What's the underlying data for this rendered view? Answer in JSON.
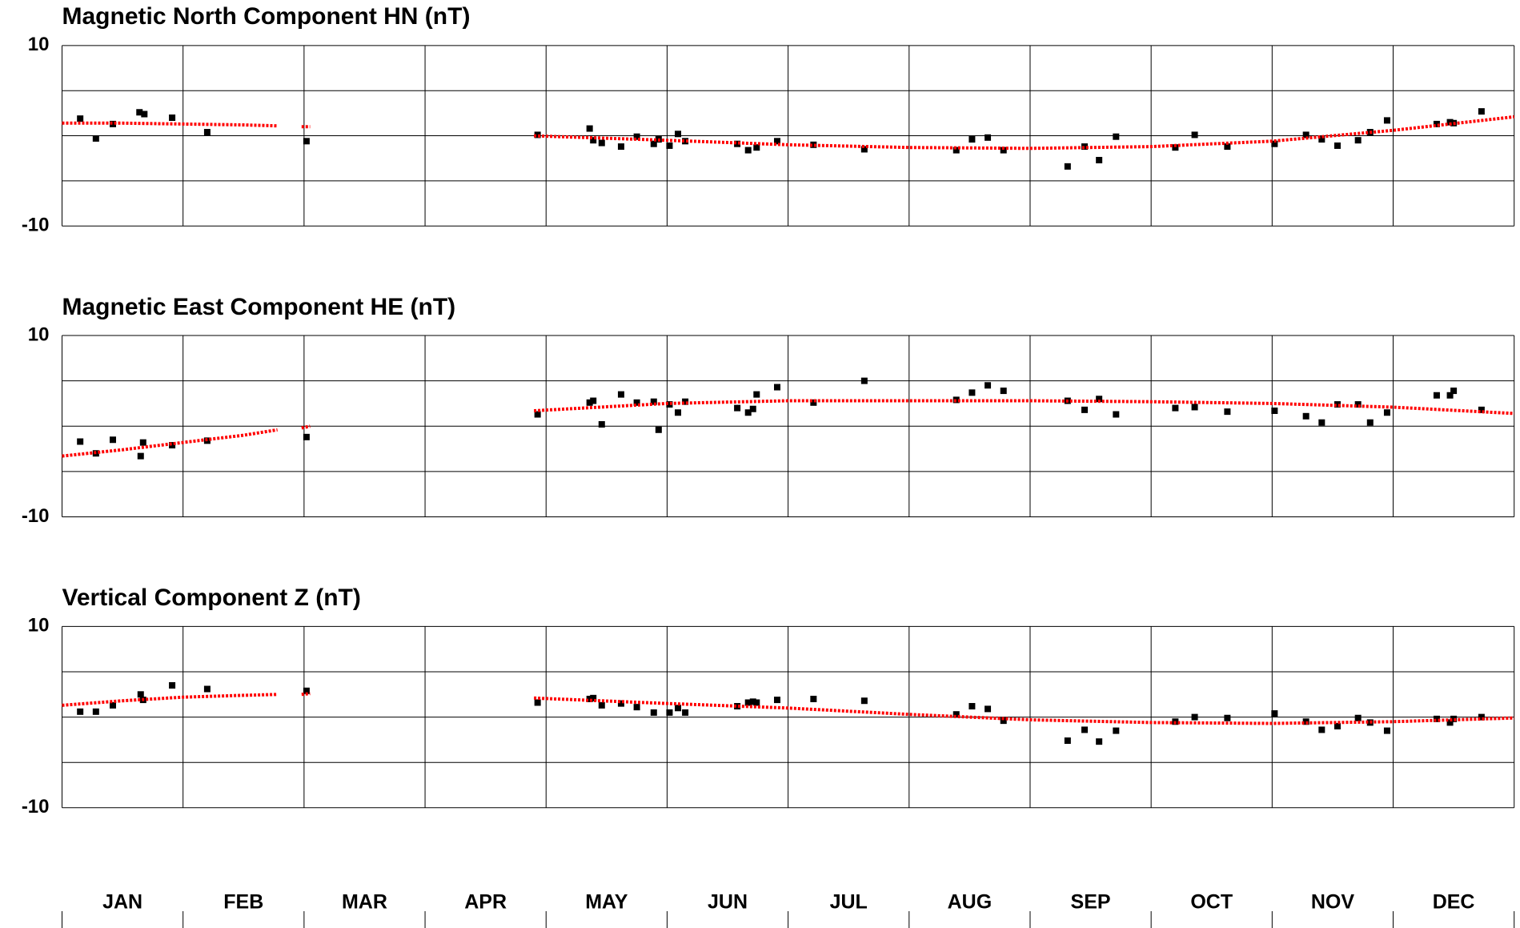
{
  "chart_data": [
    {
      "type": "scatter",
      "title": "Magnetic North Component HN (nT)",
      "xlim": [
        0,
        12
      ],
      "ylim": [
        -10,
        10
      ],
      "yticks": [
        -10,
        {
          "value": -5,
          "label": null
        },
        {
          "value": 0,
          "label": null
        },
        {
          "value": 5,
          "label": null
        },
        10
      ],
      "xticks": [
        {
          "value": 0,
          "label": null
        },
        {
          "value": 1,
          "label": null
        },
        {
          "value": 2,
          "label": null
        },
        {
          "value": 3,
          "label": null
        },
        {
          "value": 4,
          "label": null
        },
        {
          "value": 5,
          "label": null
        },
        {
          "value": 6,
          "label": null
        },
        {
          "value": 7,
          "label": null
        },
        {
          "value": 8,
          "label": null
        },
        {
          "value": 9,
          "label": null
        },
        {
          "value": 10,
          "label": null
        },
        {
          "value": 11,
          "label": null
        },
        {
          "value": 12,
          "label": null
        }
      ],
      "grid": true,
      "series": [
        {
          "type": "scatter",
          "color": "#000000",
          "x": [
            0.15,
            0.28,
            0.42,
            0.64,
            0.68,
            0.91,
            1.2,
            2.02,
            3.93,
            4.36,
            4.39,
            4.46,
            4.62,
            4.75,
            4.89,
            4.93,
            5.02,
            5.09,
            5.15,
            5.58,
            5.67,
            5.74,
            5.91,
            6.21,
            6.63,
            7.39,
            7.52,
            7.65,
            7.78,
            8.31,
            8.45,
            8.57,
            8.71,
            9.2,
            9.36,
            9.63,
            10.02,
            10.28,
            10.41,
            10.54,
            10.71,
            10.81,
            10.95,
            11.36,
            11.47,
            11.5,
            11.73
          ],
          "values": [
            1.9,
            -0.3,
            1.3,
            2.6,
            2.4,
            2.0,
            0.4,
            -0.6,
            0.1,
            0.8,
            -0.5,
            -0.8,
            -1.2,
            -0.1,
            -0.9,
            -0.4,
            -1.1,
            0.2,
            -0.6,
            -0.9,
            -1.6,
            -1.3,
            -0.6,
            -1.0,
            -1.5,
            -1.6,
            -0.4,
            -0.2,
            -1.6,
            -3.4,
            -1.2,
            -2.7,
            -0.1,
            -1.3,
            0.1,
            -1.2,
            -0.9,
            0.1,
            -0.4,
            -1.1,
            -0.5,
            0.4,
            1.7,
            1.3,
            1.5,
            1.4,
            2.7
          ]
        },
        {
          "type": "line",
          "style": "dotted",
          "color": "#ff0000",
          "x": [
            0,
            0.5,
            1,
            1.5,
            1.78,
            1.9,
            1.98,
            2.05,
            3.0,
            3.9,
            5,
            6,
            7,
            8,
            9,
            10,
            11,
            12
          ],
          "values": [
            1.4,
            1.4,
            1.3,
            1.2,
            1.1,
            null,
            1.0,
            1.0,
            null,
            0,
            -0.5,
            -1.0,
            -1.3,
            -1.4,
            -1.2,
            -0.6,
            0.6,
            2.1
          ]
        }
      ]
    },
    {
      "type": "scatter",
      "title": "Magnetic East Component HE (nT)",
      "xlim": [
        0,
        12
      ],
      "ylim": [
        -10,
        10
      ],
      "yticks": [
        -10,
        {
          "value": -5,
          "label": null
        },
        {
          "value": 0,
          "label": null
        },
        {
          "value": 5,
          "label": null
        },
        10
      ],
      "xticks": [
        {
          "value": 0,
          "label": null
        },
        {
          "value": 1,
          "label": null
        },
        {
          "value": 2,
          "label": null
        },
        {
          "value": 3,
          "label": null
        },
        {
          "value": 4,
          "label": null
        },
        {
          "value": 5,
          "label": null
        },
        {
          "value": 6,
          "label": null
        },
        {
          "value": 7,
          "label": null
        },
        {
          "value": 8,
          "label": null
        },
        {
          "value": 9,
          "label": null
        },
        {
          "value": 10,
          "label": null
        },
        {
          "value": 11,
          "label": null
        },
        {
          "value": 12,
          "label": null
        }
      ],
      "grid": true,
      "series": [
        {
          "type": "scatter",
          "color": "#000000",
          "x": [
            0.15,
            0.28,
            0.42,
            0.65,
            0.67,
            0.91,
            1.2,
            2.02,
            3.93,
            4.36,
            4.39,
            4.46,
            4.62,
            4.75,
            4.89,
            4.93,
            5.02,
            5.09,
            5.15,
            5.58,
            5.67,
            5.71,
            5.74,
            5.91,
            6.21,
            6.63,
            7.39,
            7.52,
            7.65,
            7.78,
            8.31,
            8.45,
            8.57,
            8.71,
            9.2,
            9.36,
            9.63,
            10.02,
            10.28,
            10.41,
            10.54,
            10.71,
            10.81,
            10.95,
            11.36,
            11.47,
            11.5,
            11.73
          ],
          "values": [
            -1.7,
            -3.0,
            -1.5,
            -3.3,
            -1.8,
            -2.1,
            -1.6,
            -1.2,
            1.3,
            2.6,
            2.8,
            0.2,
            3.5,
            2.6,
            2.7,
            -0.4,
            2.4,
            1.5,
            2.7,
            2.0,
            1.5,
            1.9,
            3.5,
            4.3,
            2.6,
            5.0,
            2.9,
            3.7,
            4.5,
            3.9,
            2.8,
            1.8,
            3.0,
            1.3,
            2.0,
            2.1,
            1.6,
            1.7,
            1.1,
            0.4,
            2.4,
            2.4,
            0.4,
            1.5,
            3.4,
            3.4,
            3.9,
            1.8
          ]
        },
        {
          "type": "line",
          "style": "dotted",
          "color": "#ff0000",
          "x": [
            0,
            0.5,
            1,
            1.5,
            1.78,
            1.9,
            1.98,
            2.05,
            3.0,
            3.9,
            5,
            6,
            7,
            8,
            9,
            10,
            11,
            12
          ],
          "values": [
            -3.3,
            -2.6,
            -1.8,
            -1.0,
            -0.4,
            null,
            -0.2,
            0,
            null,
            1.7,
            2.5,
            2.8,
            2.8,
            2.8,
            2.7,
            2.5,
            2.1,
            1.4
          ]
        }
      ]
    },
    {
      "type": "scatter",
      "title": "Vertical Component Z (nT)",
      "xlim": [
        0,
        12
      ],
      "ylim": [
        -10,
        10
      ],
      "yticks": [
        -10,
        {
          "value": -5,
          "label": null
        },
        {
          "value": 0,
          "label": null
        },
        {
          "value": 5,
          "label": null
        },
        10
      ],
      "xticks": [
        {
          "value": 0,
          "label": null
        },
        {
          "value": 1,
          "label": null
        },
        {
          "value": 2,
          "label": null
        },
        {
          "value": 3,
          "label": null
        },
        {
          "value": 4,
          "label": null
        },
        {
          "value": 5,
          "label": null
        },
        {
          "value": 6,
          "label": null
        },
        {
          "value": 7,
          "label": null
        },
        {
          "value": 8,
          "label": null
        },
        {
          "value": 9,
          "label": null
        },
        {
          "value": 10,
          "label": null
        },
        {
          "value": 11,
          "label": null
        },
        {
          "value": 12,
          "label": null
        }
      ],
      "grid": true,
      "categories": [
        "JAN",
        "FEB",
        "MAR",
        "APR",
        "MAY",
        "JUN",
        "JUL",
        "AUG",
        "SEP",
        "OCT",
        "NOV",
        "DEC"
      ],
      "series": [
        {
          "type": "scatter",
          "color": "#000000",
          "x": [
            0.15,
            0.28,
            0.42,
            0.65,
            0.67,
            0.91,
            1.2,
            2.02,
            3.93,
            4.36,
            4.39,
            4.46,
            4.62,
            4.75,
            4.89,
            5.02,
            5.09,
            5.15,
            5.58,
            5.67,
            5.71,
            5.74,
            5.91,
            6.21,
            6.63,
            7.39,
            7.52,
            7.65,
            7.78,
            8.31,
            8.45,
            8.57,
            8.71,
            9.2,
            9.36,
            9.63,
            10.02,
            10.28,
            10.41,
            10.54,
            10.71,
            10.81,
            10.95,
            11.36,
            11.47,
            11.5,
            11.73
          ],
          "values": [
            0.6,
            0.6,
            1.3,
            2.5,
            1.9,
            3.5,
            3.1,
            2.9,
            1.6,
            2.0,
            2.1,
            1.3,
            1.5,
            1.1,
            0.5,
            0.5,
            1.0,
            0.5,
            1.2,
            1.6,
            1.7,
            1.6,
            1.9,
            2.0,
            1.8,
            0.3,
            1.2,
            0.9,
            -0.4,
            -2.6,
            -1.4,
            -2.7,
            -1.5,
            -0.5,
            0.0,
            -0.1,
            0.4,
            -0.5,
            -1.4,
            -1.0,
            -0.1,
            -0.6,
            -1.5,
            -0.2,
            -0.6,
            -0.2,
            0.0
          ]
        },
        {
          "type": "line",
          "style": "dotted",
          "color": "#ff0000",
          "x": [
            0,
            0.5,
            1,
            1.5,
            1.78,
            1.9,
            1.98,
            2.05,
            3.0,
            3.9,
            5,
            6,
            7,
            8,
            9,
            10,
            11,
            12
          ],
          "values": [
            1.3,
            1.8,
            2.2,
            2.4,
            2.5,
            null,
            2.5,
            2.6,
            null,
            2.1,
            1.5,
            1.0,
            0.3,
            -0.3,
            -0.6,
            -0.7,
            -0.5,
            -0.1
          ]
        }
      ]
    }
  ]
}
